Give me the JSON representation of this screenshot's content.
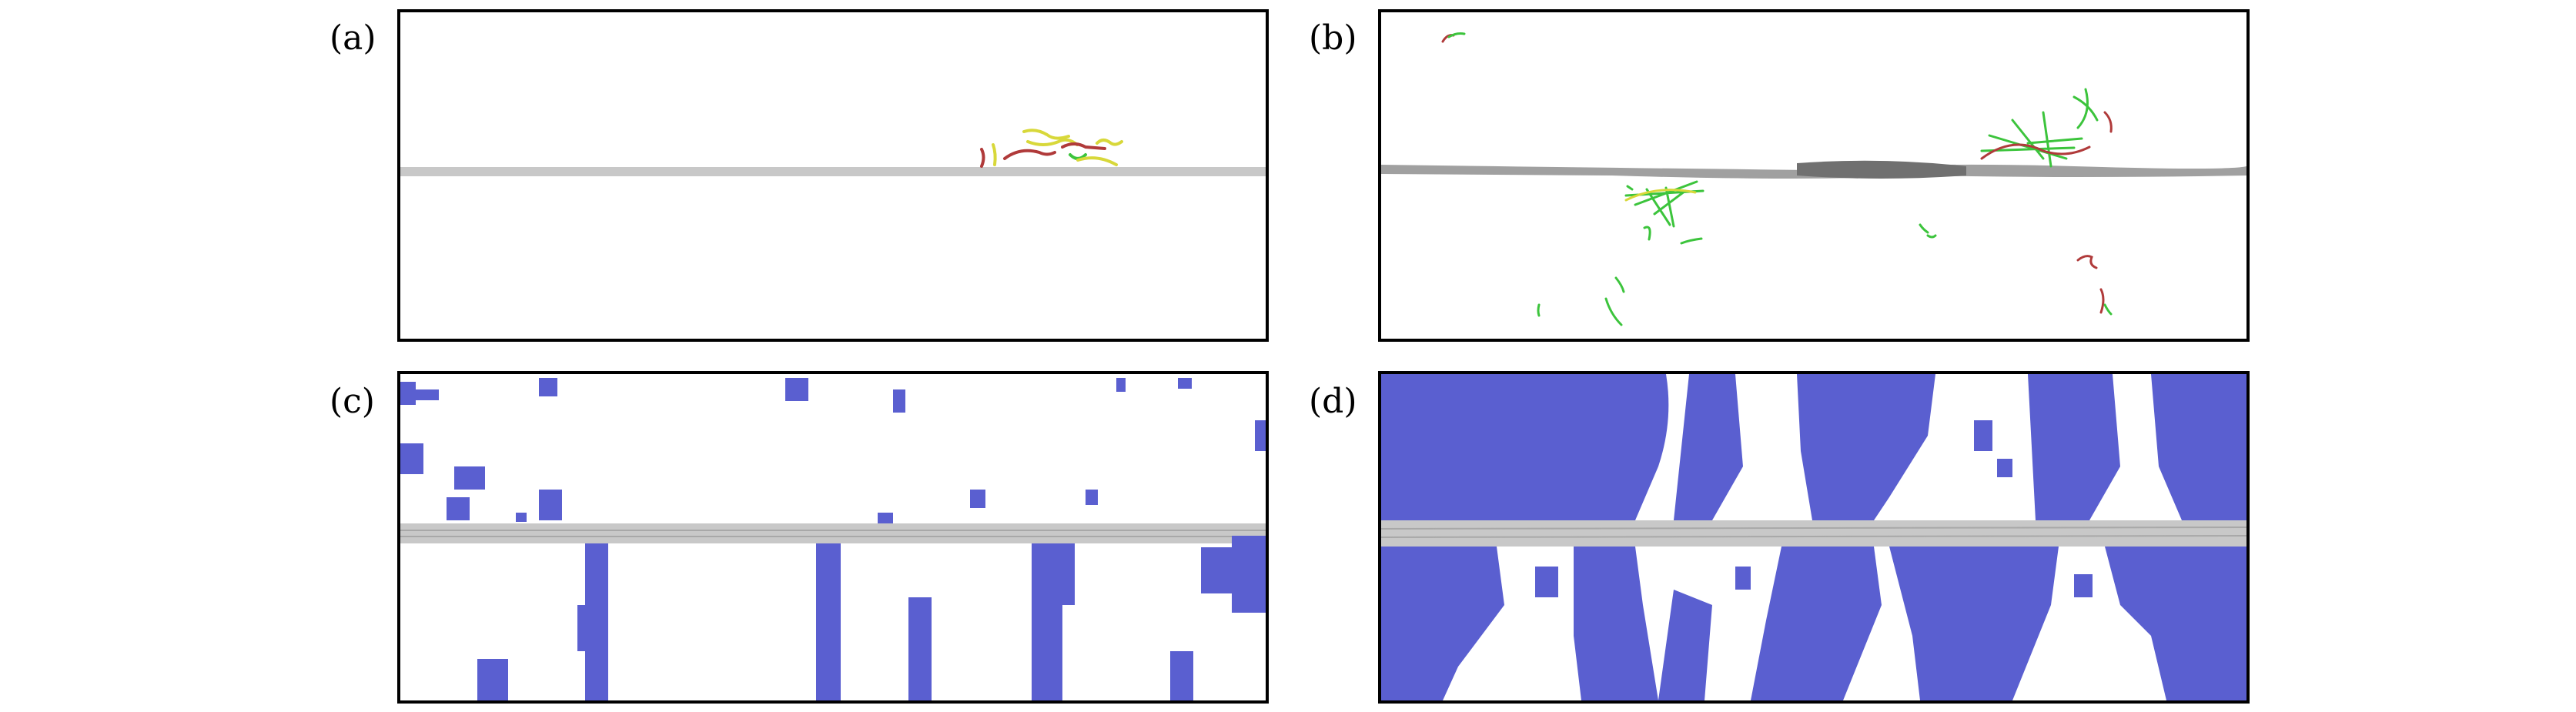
{
  "labels": {
    "a": "(a)",
    "b": "(b)",
    "c": "(c)",
    "d": "(d)"
  },
  "colors": {
    "border": "#000000",
    "interface": "#c8c8c8",
    "interface_dark": "#808080",
    "atoms": "#5a5fd0",
    "dislocation_green": "#3cc43c",
    "dislocation_red": "#b03a3a",
    "dislocation_yellow": "#d8d83a"
  }
}
